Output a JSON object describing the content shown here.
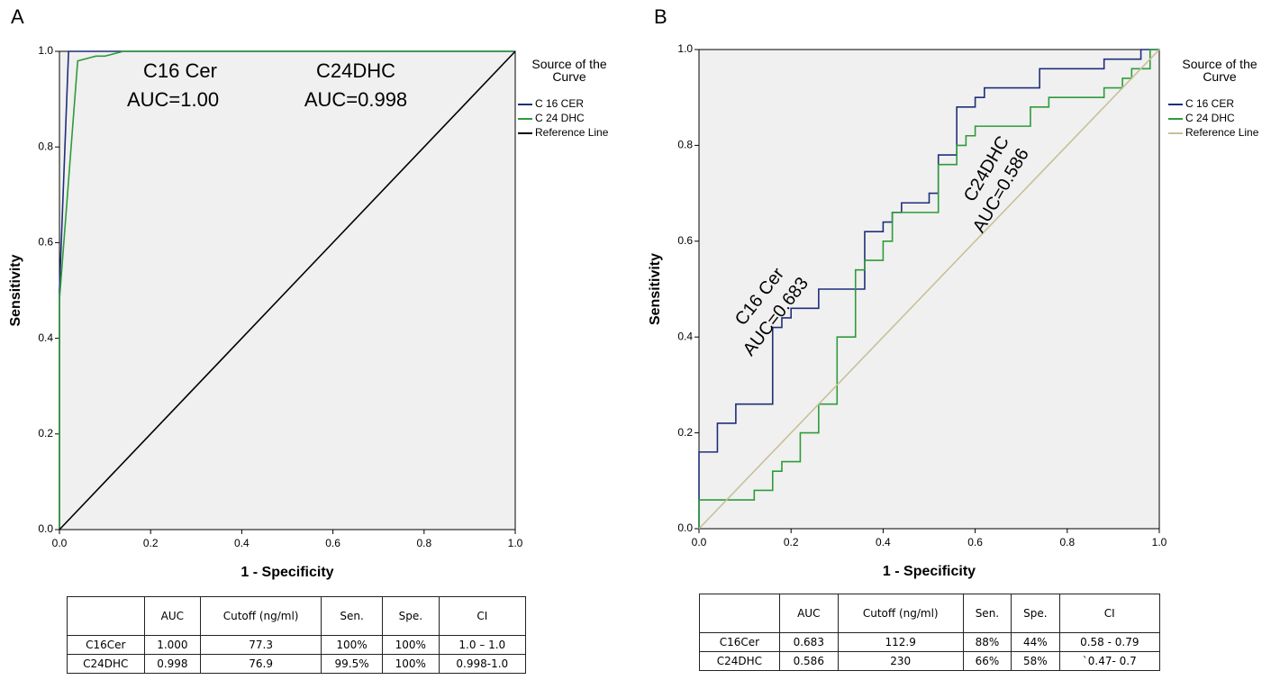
{
  "chart_data": [
    {
      "type": "line",
      "panel": "A",
      "xlabel": "1 - Specificity",
      "ylabel": "Sensitivity",
      "xlim": [
        0,
        1
      ],
      "ylim": [
        0,
        1
      ],
      "xticks": [
        {
          "value": 0,
          "label": "0.0"
        },
        {
          "value": 0.2,
          "label": "0.2"
        },
        {
          "value": 0.4,
          "label": "0.4"
        },
        {
          "value": 0.6,
          "label": "0.6"
        },
        {
          "value": 0.8,
          "label": "0.8"
        },
        {
          "value": 1,
          "label": "1.0"
        }
      ],
      "yticks": [
        {
          "value": 0,
          "label": "0.0"
        },
        {
          "value": 0.2,
          "label": "0.2"
        },
        {
          "value": 0.4,
          "label": "0.4"
        },
        {
          "value": 0.6,
          "label": "0.6"
        },
        {
          "value": 0.8,
          "label": "0.8"
        },
        {
          "value": 1,
          "label": "1.0"
        }
      ],
      "legend_title": "Source of the Curve",
      "series": [
        {
          "name": "C 16 CER",
          "color": "#1f2f7a",
          "x": [
            0,
            0,
            0.02,
            1
          ],
          "values": [
            0,
            0.5,
            1,
            1
          ]
        },
        {
          "name": "C 24 DHC",
          "color": "#2e9b3a",
          "x": [
            0,
            0,
            0.04,
            0.08,
            0.1,
            0.14,
            1
          ],
          "values": [
            0,
            0.48,
            0.98,
            0.99,
            0.99,
            1,
            1
          ]
        },
        {
          "name": "Reference Line",
          "color": "#000000",
          "x": [
            0,
            1
          ],
          "values": [
            0,
            1
          ]
        }
      ],
      "annotations": [
        "C16 Cer",
        "AUC=1.00",
        "C24DHC",
        "AUC=0.998"
      ],
      "table": {
        "header": [
          "AUC",
          "Cutoff (ng/ml)",
          "Sen.",
          "Spe.",
          "CI"
        ],
        "rows": [
          [
            "C16Cer",
            "1.000",
            "77.3",
            "100%",
            "100%",
            "1.0 – 1.0"
          ],
          [
            "C24DHC",
            "0.998",
            "76.9",
            "99.5%",
            "100%",
            "0.998-1.0"
          ]
        ]
      }
    },
    {
      "type": "line",
      "panel": "B",
      "xlabel": "1 - Specificity",
      "ylabel": "Sensitivity",
      "xlim": [
        0,
        1
      ],
      "ylim": [
        0,
        1
      ],
      "xticks": [
        {
          "value": 0,
          "label": "0.0"
        },
        {
          "value": 0.2,
          "label": "0.2"
        },
        {
          "value": 0.4,
          "label": "0.4"
        },
        {
          "value": 0.6,
          "label": "0.6"
        },
        {
          "value": 0.8,
          "label": "0.8"
        },
        {
          "value": 1,
          "label": "1.0"
        }
      ],
      "yticks": [
        {
          "value": 0,
          "label": "0.0"
        },
        {
          "value": 0.2,
          "label": "0.2"
        },
        {
          "value": 0.4,
          "label": "0.4"
        },
        {
          "value": 0.6,
          "label": "0.6"
        },
        {
          "value": 0.8,
          "label": "0.8"
        },
        {
          "value": 1,
          "label": "1.0"
        }
      ],
      "legend_title": "Source of the Curve",
      "series": [
        {
          "name": "C 16 CER",
          "color": "#1f2f7a",
          "x": [
            0,
            0,
            0.04,
            0.04,
            0.08,
            0.08,
            0.16,
            0.16,
            0.18,
            0.18,
            0.2,
            0.2,
            0.26,
            0.26,
            0.36,
            0.36,
            0.4,
            0.4,
            0.42,
            0.42,
            0.44,
            0.44,
            0.5,
            0.5,
            0.52,
            0.52,
            0.56,
            0.56,
            0.6,
            0.6,
            0.62,
            0.62,
            0.74,
            0.74,
            0.88,
            0.88,
            0.96,
            0.96,
            1
          ],
          "values": [
            0,
            0.16,
            0.16,
            0.22,
            0.22,
            0.26,
            0.26,
            0.42,
            0.42,
            0.44,
            0.44,
            0.46,
            0.46,
            0.5,
            0.5,
            0.62,
            0.62,
            0.64,
            0.64,
            0.66,
            0.66,
            0.68,
            0.68,
            0.7,
            0.7,
            0.78,
            0.78,
            0.88,
            0.88,
            0.9,
            0.9,
            0.92,
            0.92,
            0.96,
            0.96,
            0.98,
            0.98,
            1,
            1
          ]
        },
        {
          "name": "C 24 DHC",
          "color": "#2e9b3a",
          "x": [
            0,
            0,
            0.12,
            0.12,
            0.16,
            0.16,
            0.18,
            0.18,
            0.22,
            0.22,
            0.26,
            0.26,
            0.3,
            0.3,
            0.34,
            0.34,
            0.36,
            0.36,
            0.4,
            0.4,
            0.42,
            0.42,
            0.52,
            0.52,
            0.56,
            0.56,
            0.58,
            0.58,
            0.6,
            0.6,
            0.72,
            0.72,
            0.76,
            0.76,
            0.88,
            0.88,
            0.92,
            0.92,
            0.94,
            0.94,
            0.98,
            0.98,
            1
          ],
          "values": [
            0,
            0.06,
            0.06,
            0.08,
            0.08,
            0.12,
            0.12,
            0.14,
            0.14,
            0.2,
            0.2,
            0.26,
            0.26,
            0.4,
            0.4,
            0.54,
            0.54,
            0.56,
            0.56,
            0.6,
            0.6,
            0.66,
            0.66,
            0.76,
            0.76,
            0.8,
            0.8,
            0.82,
            0.82,
            0.84,
            0.84,
            0.88,
            0.88,
            0.9,
            0.9,
            0.92,
            0.92,
            0.94,
            0.94,
            0.96,
            0.96,
            1,
            1
          ]
        },
        {
          "name": "Reference Line",
          "color": "#c8c096",
          "x": [
            0,
            1
          ],
          "values": [
            0,
            1
          ]
        }
      ],
      "annotations": [
        "C16 Cer",
        "AUC=0.683",
        "C24DHC",
        "AUC=0.586"
      ],
      "table": {
        "header": [
          "AUC",
          "Cutoff (ng/ml)",
          "Sen.",
          "Spe.",
          "CI"
        ],
        "rows": [
          [
            "C16Cer",
            "0.683",
            "112.9",
            "88%",
            "44%",
            "0.58 - 0.79"
          ],
          [
            "C24DHC",
            "0.586",
            "230",
            "66%",
            "58%",
            "`0.47- 0.7"
          ]
        ]
      }
    }
  ]
}
